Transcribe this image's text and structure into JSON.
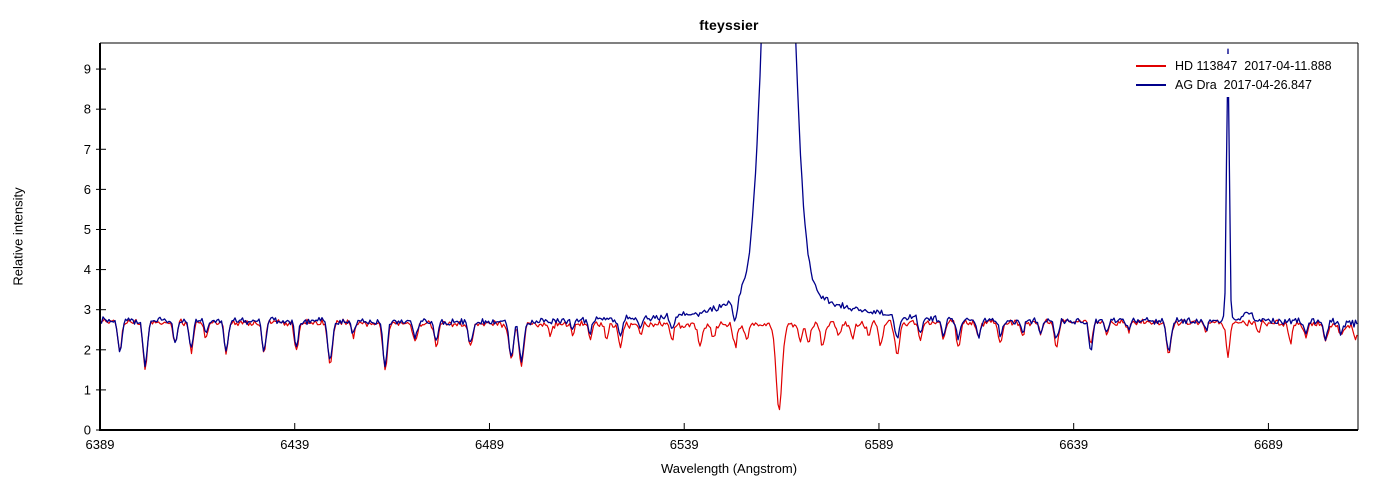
{
  "chart_data": {
    "type": "line",
    "title": "fteyssier",
    "xlabel": "Wavelength (Angstrom)",
    "ylabel": "Relative intensity",
    "xlim": [
      6389,
      6712
    ],
    "ylim": [
      0,
      9.65
    ],
    "xticks": [
      6389,
      6439,
      6489,
      6539,
      6589,
      6639,
      6689
    ],
    "yticks": [
      0,
      1,
      2,
      3,
      4,
      5,
      6,
      7,
      8,
      9
    ],
    "grid": false,
    "legend_position": "top-right",
    "axis_color": "#000000",
    "background": "#ffffff",
    "series": [
      {
        "label": "HD 113847  2017-04-11.888",
        "color": "#e00000",
        "line_width": 1.2,
        "noise": {
          "amp": 0.055,
          "seed": 7
        },
        "continuum": [
          [
            6389,
            2.7
          ],
          [
            6430,
            2.68
          ],
          [
            6470,
            2.66
          ],
          [
            6500,
            2.64
          ],
          [
            6540,
            2.62
          ],
          [
            6560,
            2.62
          ],
          [
            6575,
            2.63
          ],
          [
            6600,
            2.68
          ],
          [
            6640,
            2.7
          ],
          [
            6680,
            2.68
          ],
          [
            6712,
            2.6
          ]
        ],
        "absorption": [
          [
            6394.1,
            0.75,
            0.7
          ],
          [
            6400.6,
            1.15,
            0.8
          ],
          [
            6408.3,
            0.55,
            0.7
          ],
          [
            6412.4,
            0.7,
            0.7
          ],
          [
            6416.2,
            0.4,
            0.6
          ],
          [
            6421.4,
            0.75,
            0.7
          ],
          [
            6431.1,
            0.75,
            0.7
          ],
          [
            6439.4,
            0.7,
            0.7
          ],
          [
            6448.1,
            1.05,
            0.8
          ],
          [
            6454.0,
            0.35,
            0.6
          ],
          [
            6462.2,
            1.15,
            0.8
          ],
          [
            6469.9,
            0.45,
            0.7
          ],
          [
            6475.3,
            0.55,
            0.7
          ],
          [
            6484.1,
            0.55,
            0.8
          ],
          [
            6494.6,
            0.9,
            0.8
          ],
          [
            6497.2,
            1.05,
            0.8
          ],
          [
            6504.6,
            0.3,
            0.6
          ],
          [
            6510.3,
            0.28,
            0.6
          ],
          [
            6514.9,
            0.35,
            0.6
          ],
          [
            6519.0,
            0.4,
            0.6
          ],
          [
            6522.6,
            0.55,
            0.7
          ],
          [
            6527.7,
            0.28,
            0.6
          ],
          [
            6535.9,
            0.38,
            0.6
          ],
          [
            6543.1,
            0.5,
            0.7
          ],
          [
            6546.5,
            0.35,
            0.6
          ],
          [
            6552.1,
            0.55,
            0.7
          ],
          [
            6555.0,
            0.4,
            0.6
          ],
          [
            6563.35,
            2.05,
            1.1
          ],
          [
            6568.8,
            0.45,
            0.6
          ],
          [
            6570.9,
            0.5,
            0.6
          ],
          [
            6574.5,
            0.6,
            0.7
          ],
          [
            6578.6,
            0.35,
            0.6
          ],
          [
            6582.2,
            0.35,
            0.6
          ],
          [
            6586.3,
            0.3,
            0.6
          ],
          [
            6589.4,
            0.5,
            0.7
          ],
          [
            6593.7,
            0.8,
            0.8
          ],
          [
            6599.7,
            0.4,
            0.7
          ],
          [
            6605.6,
            0.45,
            0.7
          ],
          [
            6609.4,
            0.65,
            0.7
          ],
          [
            6614.6,
            0.4,
            0.7
          ],
          [
            6620.2,
            0.55,
            0.7
          ],
          [
            6625.9,
            0.35,
            0.6
          ],
          [
            6630.5,
            0.3,
            0.6
          ],
          [
            6634.6,
            0.65,
            0.7
          ],
          [
            6643.4,
            0.5,
            0.7
          ],
          [
            6647.5,
            0.3,
            0.6
          ],
          [
            6653.1,
            0.25,
            0.6
          ],
          [
            6663.4,
            0.8,
            0.8
          ],
          [
            6672.9,
            0.25,
            0.6
          ],
          [
            6678.6,
            0.8,
            0.7
          ],
          [
            6686.5,
            0.25,
            0.6
          ],
          [
            6694.7,
            0.45,
            0.7
          ],
          [
            6698.6,
            0.3,
            0.6
          ],
          [
            6703.7,
            0.4,
            0.7
          ],
          [
            6707.6,
            0.25,
            0.6
          ],
          [
            6711.3,
            0.35,
            0.6
          ]
        ],
        "emission": []
      },
      {
        "label": "AG Dra  2017-04-26.847",
        "color": "#00008b",
        "line_width": 1.3,
        "noise": {
          "amp": 0.055,
          "seed": 13
        },
        "continuum": [
          [
            6389,
            2.74
          ],
          [
            6440,
            2.72
          ],
          [
            6480,
            2.7
          ],
          [
            6505,
            2.71
          ],
          [
            6520,
            2.76
          ],
          [
            6535,
            2.82
          ],
          [
            6545,
            2.88
          ],
          [
            6558,
            2.92
          ],
          [
            6570,
            2.96
          ],
          [
            6580,
            2.98
          ],
          [
            6590,
            2.9
          ],
          [
            6600,
            2.78
          ],
          [
            6615,
            2.72
          ],
          [
            6700,
            2.72
          ],
          [
            6712,
            2.66
          ]
        ],
        "absorption": [
          [
            6394.1,
            0.78,
            0.7
          ],
          [
            6400.6,
            1.1,
            0.8
          ],
          [
            6408.3,
            0.55,
            0.7
          ],
          [
            6412.4,
            0.7,
            0.7
          ],
          [
            6416.2,
            0.3,
            0.6
          ],
          [
            6421.4,
            0.78,
            0.7
          ],
          [
            6431.1,
            0.72,
            0.7
          ],
          [
            6439.4,
            0.6,
            0.7
          ],
          [
            6448.1,
            1.0,
            0.8
          ],
          [
            6454.0,
            0.3,
            0.6
          ],
          [
            6462.2,
            1.1,
            0.8
          ],
          [
            6469.9,
            0.42,
            0.7
          ],
          [
            6475.3,
            0.5,
            0.7
          ],
          [
            6484.1,
            0.55,
            0.8
          ],
          [
            6494.6,
            0.85,
            0.8
          ],
          [
            6497.2,
            1.0,
            0.8
          ],
          [
            6510.3,
            0.25,
            0.6
          ],
          [
            6514.9,
            0.3,
            0.6
          ],
          [
            6522.6,
            0.5,
            0.7
          ],
          [
            6527.7,
            0.25,
            0.6
          ],
          [
            6535.9,
            0.3,
            0.6
          ],
          [
            6552.1,
            0.6,
            0.7
          ],
          [
            6593.7,
            0.55,
            0.8
          ],
          [
            6599.7,
            0.4,
            0.7
          ],
          [
            6605.6,
            0.4,
            0.7
          ],
          [
            6609.4,
            0.45,
            0.7
          ],
          [
            6614.6,
            0.4,
            0.7
          ],
          [
            6620.2,
            0.35,
            0.6
          ],
          [
            6625.9,
            0.35,
            0.6
          ],
          [
            6630.5,
            0.28,
            0.6
          ],
          [
            6634.6,
            0.45,
            0.7
          ],
          [
            6643.4,
            0.75,
            0.7
          ],
          [
            6647.5,
            0.3,
            0.6
          ],
          [
            6653.1,
            0.25,
            0.6
          ],
          [
            6663.4,
            0.78,
            0.8
          ],
          [
            6672.9,
            0.25,
            0.6
          ],
          [
            6698.6,
            0.3,
            0.6
          ],
          [
            6703.7,
            0.4,
            0.7
          ],
          [
            6707.6,
            0.25,
            0.6
          ]
        ],
        "emission": [
          [
            6563.2,
            16.0,
            4.5
          ],
          [
            6563.2,
            0.8,
            12.0
          ],
          [
            6678.6,
            6.8,
            0.5
          ],
          [
            6683.5,
            0.22,
            1.5
          ]
        ]
      }
    ],
    "emission_lines_note": "absorption: [center_angstrom, depth_below_continuum, sigma_angstrom]; emission: [center_angstrom, peak_above_continuum, sigma_angstrom]"
  },
  "legend": {
    "entries": [
      {
        "label": "HD 113847  2017-04-11.888",
        "color": "#e00000"
      },
      {
        "label": "AG Dra  2017-04-26.847",
        "color": "#00008b"
      }
    ]
  }
}
